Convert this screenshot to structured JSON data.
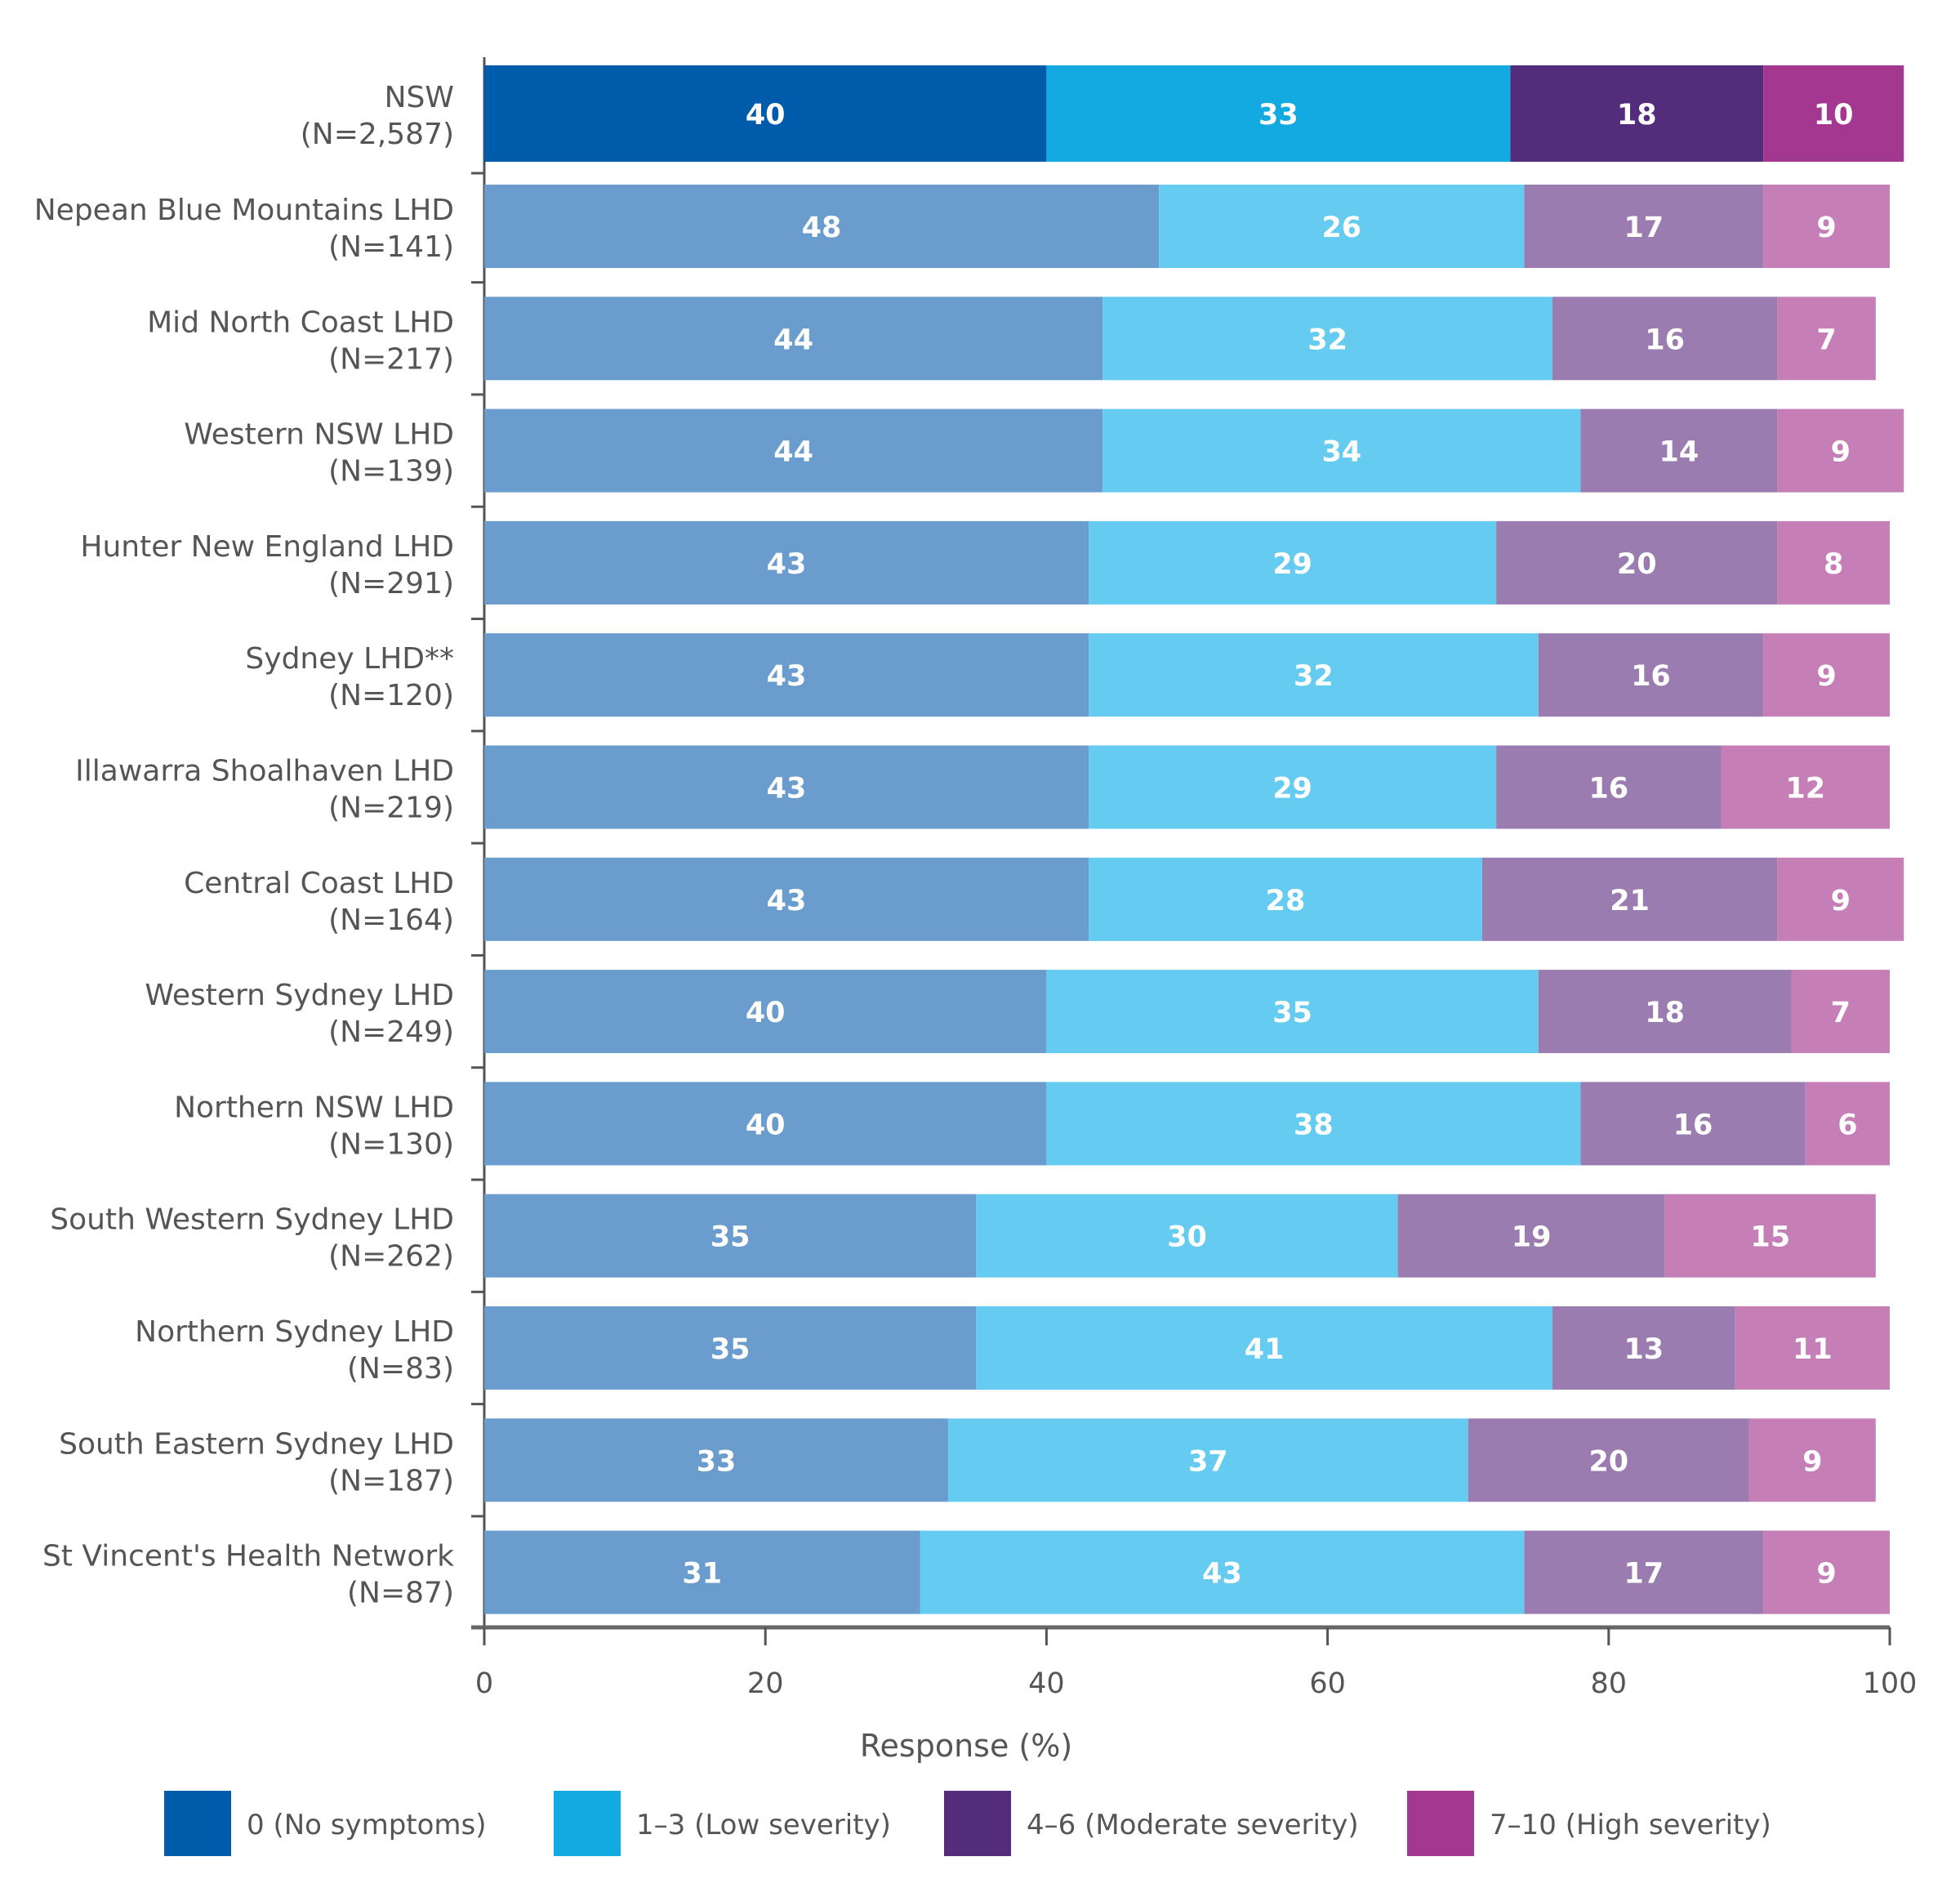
{
  "chart_data": {
    "type": "bar",
    "orientation": "horizontal",
    "stacked": true,
    "xlabel": "Response (%)",
    "ylabel": "",
    "xlim": [
      0,
      100
    ],
    "xticks": [
      "0",
      "20",
      "40",
      "60",
      "80",
      "100"
    ],
    "grid": false,
    "legend_position": "bottom",
    "categories": [
      [
        "NSW",
        "(N=2,587)"
      ],
      [
        "Nepean Blue Mountains LHD",
        "(N=141)"
      ],
      [
        "Mid North Coast LHD",
        "(N=217)"
      ],
      [
        "Western NSW LHD",
        "(N=139)"
      ],
      [
        "Hunter New England LHD",
        "(N=291)"
      ],
      [
        "Sydney LHD**",
        "(N=120)"
      ],
      [
        "Illawarra Shoalhaven LHD",
        "(N=219)"
      ],
      [
        "Central Coast LHD",
        "(N=164)"
      ],
      [
        "Western Sydney LHD",
        "(N=249)"
      ],
      [
        "Northern NSW LHD",
        "(N=130)"
      ],
      [
        "South Western Sydney LHD",
        "(N=262)"
      ],
      [
        "Northern Sydney LHD",
        "(N=83)"
      ],
      [
        "South Eastern Sydney LHD",
        "(N=187)"
      ],
      [
        "St Vincent's Health Network",
        "(N=87)"
      ]
    ],
    "series": [
      {
        "name": "0 (No symptoms)",
        "color": "#005BAA",
        "light_color": "#6A9CCD",
        "values": [
          40,
          48,
          44,
          44,
          43,
          43,
          43,
          43,
          40,
          40,
          35,
          35,
          33,
          31
        ]
      },
      {
        "name": "1–3 (Low severity)",
        "color": "#13A9E1",
        "light_color": "#66CBF0",
        "values": [
          33,
          26,
          32,
          34,
          29,
          32,
          29,
          28,
          35,
          38,
          30,
          41,
          37,
          43
        ]
      },
      {
        "name": "4–6 (Moderate severity)",
        "color": "#542C7C",
        "light_color": "#9B7CB0",
        "values": [
          18,
          17,
          16,
          14,
          20,
          16,
          16,
          21,
          18,
          16,
          19,
          13,
          20,
          17
        ]
      },
      {
        "name": "7–10 (High severity)",
        "color": "#A4378F",
        "light_color": "#C57EB6",
        "values": [
          10,
          9,
          7,
          9,
          8,
          9,
          12,
          9,
          7,
          6,
          15,
          11,
          9,
          9
        ]
      }
    ]
  }
}
